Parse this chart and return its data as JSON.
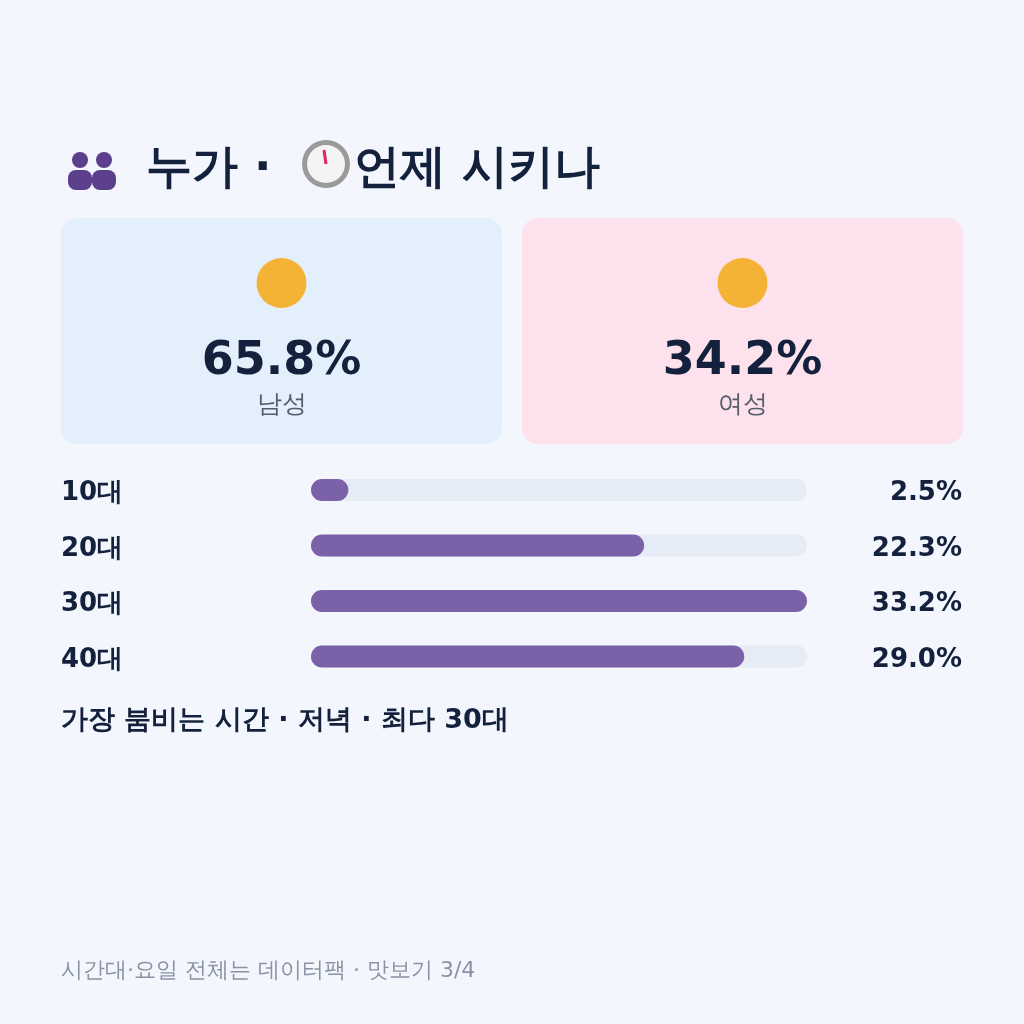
{
  "chart_data": [
    {
      "type": "other",
      "title": "누가 · 언제 시키나",
      "categories": [
        "남성",
        "여성"
      ],
      "value_labels": [
        "65.8%",
        "34.2%"
      ],
      "colors": [
        "#e3f0fb",
        "#fde1ec"
      ]
    },
    {
      "type": "bar",
      "orientation": "horizontal",
      "categories": [
        "10대",
        "20대",
        "30대",
        "40대"
      ],
      "values": [
        2.5,
        22.3,
        33.2,
        29.0
      ],
      "value_labels": [
        "2.5%",
        "22.3%",
        "33.2%",
        "29.0%"
      ],
      "color": "#7b61a8",
      "xlim": [
        0,
        33.2
      ],
      "tick_labels": false,
      "annotations": [
        "가장 붐비는 시간 · 저녁 · 최다 30대",
        "시간대·요일 전체는 데이터팩 · 맛보기 3/4"
      ]
    }
  ]
}
